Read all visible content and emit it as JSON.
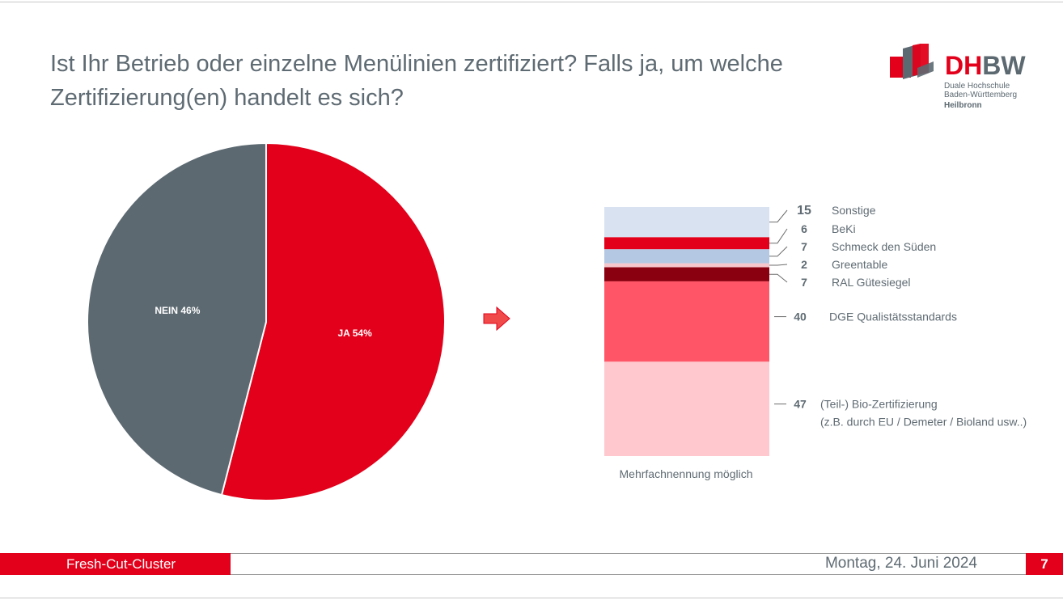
{
  "slide": {
    "title_line1": "Ist Ihr Betrieb oder einzelne Menülinien zertifiziert? Falls ja, um welche",
    "title_line2": "Zertifizierung(en) handelt es sich?",
    "note": "Mehrfachnennung möglich"
  },
  "logo": {
    "brand_part1": "DH",
    "brand_part2": "BW",
    "sub_line1": "Duale Hochschule",
    "sub_line2": "Baden-Württemberg",
    "city": "Heilbronn"
  },
  "footer": {
    "left_label": "Fresh-Cut-Cluster",
    "date": "Montag, 24. Juni 2024",
    "page_number": "7"
  },
  "colors": {
    "brand_red": "#e2001a",
    "slate": "#5c6971"
  },
  "icons": {
    "arrow": "right-arrow-icon"
  },
  "chart_data": [
    {
      "type": "pie",
      "slices": [
        {
          "label": "JA 54%",
          "value": 54,
          "color": "#e2001a"
        },
        {
          "label": "NEIN 46%",
          "value": 46,
          "color": "#5c6971"
        }
      ]
    },
    {
      "type": "bar",
      "stacked": true,
      "orientation": "vertical",
      "segments": [
        {
          "label": "(Teil-) Bio-Zertifizierung",
          "label_line2": "(z.B. durch EU / Demeter / Bioland usw..)",
          "value": 47,
          "color": "#fec8ce"
        },
        {
          "label": "DGE Qualistätsstandards",
          "value": 40,
          "color": "#ff5566"
        },
        {
          "label": "RAL Gütesiegel",
          "value": 7,
          "color": "#8b0010"
        },
        {
          "label": "Greentable",
          "value": 2,
          "color": "#f6c6cc"
        },
        {
          "label": "Schmeck den Süden",
          "value": 7,
          "color": "#b4c8e4"
        },
        {
          "label": "BeKi",
          "value": 6,
          "color": "#e2001a"
        },
        {
          "label": "Sonstige",
          "value": 15,
          "color": "#d9e2f1"
        }
      ]
    }
  ]
}
